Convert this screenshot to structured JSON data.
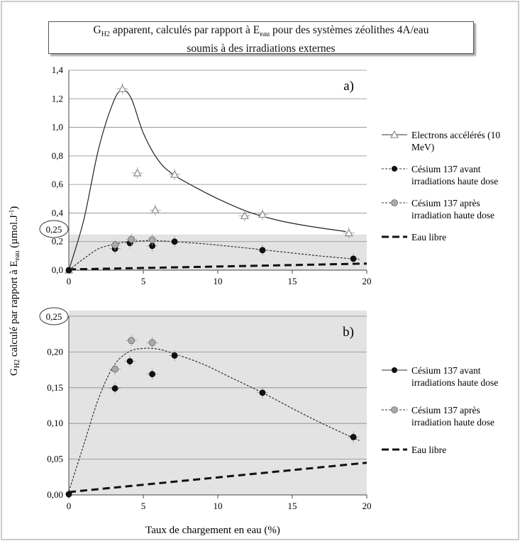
{
  "title": {
    "line1_a": "G",
    "line1_sub": "H2",
    "line1_b": " apparent, calculés par rapport à E",
    "line1_sub2": "eau",
    "line1_c": " pour des systèmes zéolithes 4A/eau",
    "line2": "soumis à des irradiations externes"
  },
  "ylabel": {
    "a": "G",
    "sub1": "H2",
    "b": " calculé par rapport à E",
    "sub2": "eau",
    "c": " (µmol.J",
    "sup": "-1",
    "d": ")"
  },
  "xlabel": "Taux de chargement en eau (%)",
  "highlight_label": "0,25",
  "colors": {
    "shade": "#e3e3e3",
    "grid": "#8a8a8a",
    "electrons": "#888888",
    "cs_before": "#111111",
    "cs_after": "#aaaaaa",
    "eau_libre": "#111111"
  },
  "chart_data": [
    {
      "type": "scatter",
      "panel_label": "a)",
      "xlim": [
        0,
        20
      ],
      "ylim": [
        0,
        1.4
      ],
      "xticks": [
        "0",
        "5",
        "10",
        "15",
        "20"
      ],
      "yticks": [
        "0,0",
        "0,2",
        "0,4",
        "0,6",
        "0,8",
        "1,0",
        "1,2",
        "1,4"
      ],
      "ytick_values": [
        0,
        0.2,
        0.4,
        0.6,
        0.8,
        1.0,
        1.2,
        1.4
      ],
      "shaded_band": [
        0,
        0.25
      ],
      "series": [
        {
          "name": "Electrons accélérés (10 MeV)",
          "marker": "triangle",
          "line": "solid",
          "points": [
            [
              0,
              0
            ],
            [
              3.6,
              1.27
            ],
            [
              4.6,
              0.68
            ],
            [
              5.8,
              0.42
            ],
            [
              7.1,
              0.67
            ],
            [
              11.8,
              0.38
            ],
            [
              13.0,
              0.39
            ],
            [
              18.8,
              0.26
            ]
          ],
          "curve": [
            [
              0,
              0
            ],
            [
              1,
              0.35
            ],
            [
              2,
              0.85
            ],
            [
              3,
              1.18
            ],
            [
              3.6,
              1.26
            ],
            [
              4.2,
              1.2
            ],
            [
              5,
              0.96
            ],
            [
              6,
              0.77
            ],
            [
              7,
              0.67
            ],
            [
              8.5,
              0.58
            ],
            [
              10,
              0.5
            ],
            [
              12,
              0.41
            ],
            [
              14,
              0.35
            ],
            [
              16,
              0.31
            ],
            [
              18.6,
              0.27
            ]
          ]
        },
        {
          "name": "Césium 137 avant irradiation haute dose",
          "marker": "circle-black",
          "line": "dotted",
          "points": [
            [
              0,
              0
            ],
            [
              3.1,
              0.15
            ],
            [
              4.1,
              0.19
            ],
            [
              5.6,
              0.17
            ],
            [
              7.1,
              0.2
            ],
            [
              13.0,
              0.14
            ],
            [
              19.1,
              0.08
            ]
          ],
          "curve": [
            [
              0,
              0
            ],
            [
              1,
              0.08
            ],
            [
              2,
              0.15
            ],
            [
              3,
              0.18
            ],
            [
              4,
              0.2
            ],
            [
              5,
              0.205
            ],
            [
              6,
              0.205
            ],
            [
              7,
              0.2
            ],
            [
              9,
              0.185
            ],
            [
              11,
              0.165
            ],
            [
              13,
              0.143
            ],
            [
              15,
              0.12
            ],
            [
              17,
              0.098
            ],
            [
              19.5,
              0.075
            ]
          ]
        },
        {
          "name": "Césium 137 après irradiation haute dose",
          "marker": "circle-gray",
          "line": "dotted",
          "points": [
            [
              3.1,
              0.176
            ],
            [
              4.2,
              0.216
            ],
            [
              5.6,
              0.213
            ]
          ]
        },
        {
          "name": "Eau libre",
          "marker": "none",
          "line": "dashed",
          "points": [
            [
              0,
              0.005
            ],
            [
              20,
              0.046
            ]
          ]
        }
      ]
    },
    {
      "type": "scatter",
      "panel_label": "b)",
      "xlim": [
        0,
        20
      ],
      "ylim": [
        0,
        0.25
      ],
      "xticks": [
        "0",
        "5",
        "10",
        "15",
        "20"
      ],
      "yticks": [
        "0,00",
        "0,05",
        "0,10",
        "0,15",
        "0,20",
        "0,25"
      ],
      "ytick_values": [
        0,
        0.05,
        0.1,
        0.15,
        0.2,
        0.25
      ],
      "series": [
        {
          "name": "Césium 137 avant irradiations haute dose",
          "marker": "circle-black",
          "line": "dotted",
          "points": [
            [
              0,
              0.001
            ],
            [
              3.1,
              0.149
            ],
            [
              4.1,
              0.187
            ],
            [
              5.6,
              0.169
            ],
            [
              7.1,
              0.195
            ],
            [
              13.0,
              0.143
            ],
            [
              19.1,
              0.081
            ]
          ],
          "curve": [
            [
              0,
              0.005
            ],
            [
              1,
              0.07
            ],
            [
              2,
              0.135
            ],
            [
              3,
              0.18
            ],
            [
              4,
              0.2
            ],
            [
              5,
              0.205
            ],
            [
              6,
              0.204
            ],
            [
              7,
              0.198
            ],
            [
              9,
              0.183
            ],
            [
              11,
              0.163
            ],
            [
              13,
              0.143
            ],
            [
              15,
              0.121
            ],
            [
              17,
              0.1
            ],
            [
              19.5,
              0.076
            ]
          ]
        },
        {
          "name": "Césium 137 après irradiation haute dose",
          "marker": "circle-gray",
          "line": "dotted",
          "points": [
            [
              3.1,
              0.176
            ],
            [
              4.2,
              0.216
            ],
            [
              5.6,
              0.213
            ]
          ]
        },
        {
          "name": "Eau libre",
          "marker": "none",
          "line": "dashed",
          "points": [
            [
              0,
              0.004
            ],
            [
              20,
              0.045
            ]
          ]
        }
      ]
    }
  ],
  "legend_a": [
    {
      "line1": "Electrons accélérés (10",
      "line2": "MeV)"
    },
    {
      "line1": "Césium 137 avant",
      "line2": "irradiations haute dose"
    },
    {
      "line1": "Césium 137 après",
      "line2": "irradiation haute dose"
    },
    {
      "line1": "Eau libre",
      "line2": ""
    }
  ],
  "legend_b": [
    {
      "line1": "Césium 137 avant",
      "line2": "irradiations haute dose"
    },
    {
      "line1": "Césium 137 après",
      "line2": "irradiation haute dose"
    },
    {
      "line1": "Eau libre",
      "line2": ""
    }
  ]
}
